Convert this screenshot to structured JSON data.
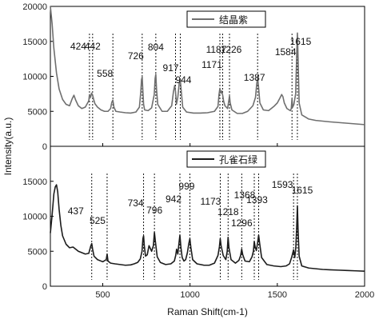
{
  "chart_data": {
    "type": "line",
    "xlabel": "Raman Shift(cm-1)",
    "ylabel": "Intensity(a.u.)",
    "xlim": [
      200,
      2000
    ],
    "x_ticks": [
      500,
      1000,
      1500,
      2000
    ],
    "grid": false,
    "panels": [
      {
        "legend": "结晶紫",
        "legend_position": "top-center",
        "line_color": "#6f6f6f",
        "ylim": [
          0,
          20000
        ],
        "y_ticks": [
          0,
          5000,
          10000,
          15000,
          20000
        ],
        "series": [
          {
            "x": [
              200,
              210,
              220,
              235,
              250,
              270,
              290,
              310,
              325,
              335,
              345,
              360,
              380,
              400,
              420,
              424,
              430,
              436,
              442,
              448,
              455,
              470,
              490,
              510,
              530,
              545,
              552,
              558,
              564,
              575,
              600,
              630,
              660,
              690,
              710,
              718,
              722,
              726,
              730,
              734,
              740,
              760,
              780,
              795,
              800,
              804,
              808,
              815,
              840,
              870,
              895,
              905,
              912,
              917,
              922,
              930,
              938,
              944,
              950,
              958,
              980,
              1020,
              1060,
              1100,
              1140,
              1160,
              1166,
              1171,
              1176,
              1182,
              1187,
              1192,
              1200,
              1215,
              1222,
              1226,
              1230,
              1240,
              1270,
              1300,
              1330,
              1360,
              1375,
              1382,
              1387,
              1392,
              1400,
              1420,
              1450,
              1480,
              1500,
              1515,
              1525,
              1532,
              1540,
              1555,
              1575,
              1580,
              1584,
              1588,
              1595,
              1605,
              1611,
              1615,
              1619,
              1625,
              1640,
              1680,
              1720,
              1760,
              1800,
              1850,
              1900,
              1950,
              2000
            ],
            "y": [
              20000,
              17500,
              14000,
              10500,
              8200,
              6700,
              6000,
              5800,
              6800,
              7300,
              6600,
              5800,
              5400,
              5600,
              6500,
              7400,
              7000,
              7600,
              7300,
              6700,
              6100,
              5600,
              5200,
              5000,
              5000,
              5400,
              6300,
              6600,
              5600,
              5000,
              4900,
              4800,
              4750,
              4900,
              5600,
              7800,
              9500,
              9900,
              7800,
              6000,
              5200,
              5100,
              5500,
              7400,
              9700,
              10300,
              8200,
              6000,
              5000,
              5000,
              5800,
              7800,
              8700,
              7800,
              6000,
              7000,
              9000,
              9600,
              7800,
              5600,
              4900,
              4750,
              4750,
              4800,
              5000,
              5700,
              7400,
              8300,
              7600,
              7900,
              7300,
              6500,
              5800,
              5400,
              6500,
              7200,
              6200,
              5200,
              4700,
              4700,
              5000,
              5800,
              7000,
              8900,
              9800,
              8600,
              6200,
              5200,
              5100,
              5700,
              6200,
              6900,
              7400,
              7100,
              6200,
              5400,
              5100,
              5400,
              6800,
              5600,
              6000,
              7500,
              13000,
              16200,
              12500,
              6200,
              4500,
              3900,
              3700,
              3600,
              3500,
              3400,
              3300,
              3200,
              3100
            ]
          }
        ],
        "peak_labels": [
          {
            "label": "424",
            "x": 424
          },
          {
            "label": "442",
            "x": 442
          },
          {
            "label": "558",
            "x": 558
          },
          {
            "label": "726",
            "x": 726
          },
          {
            "label": "804",
            "x": 804
          },
          {
            "label": "917",
            "x": 917
          },
          {
            "label": "944",
            "x": 944
          },
          {
            "label": "1171",
            "x": 1171
          },
          {
            "label": "1187",
            "x": 1187
          },
          {
            "label": "1226",
            "x": 1226
          },
          {
            "label": "1387",
            "x": 1387
          },
          {
            "label": "1584",
            "x": 1584
          },
          {
            "label": "1615",
            "x": 1615
          }
        ]
      },
      {
        "legend": "孔雀石绿",
        "legend_position": "top-center",
        "line_color": "#1c1c1c",
        "ylim": [
          0,
          20000
        ],
        "y_ticks": [
          0,
          5000,
          10000,
          15000
        ],
        "series": [
          {
            "x": [
              200,
              210,
              220,
              228,
              235,
              242,
              250,
              260,
              270,
              290,
              310,
              330,
              345,
              360,
              380,
              400,
              420,
              432,
              437,
              442,
              450,
              470,
              500,
              520,
              525,
              530,
              545,
              570,
              600,
              630,
              660,
              680,
              700,
              715,
              725,
              730,
              734,
              738,
              745,
              755,
              765,
              780,
              790,
              796,
              802,
              812,
              830,
              860,
              890,
              910,
              918,
              923,
              930,
              936,
              942,
              948,
              955,
              965,
              975,
              985,
              993,
              999,
              1005,
              1015,
              1040,
              1080,
              1110,
              1140,
              1160,
              1168,
              1173,
              1178,
              1190,
              1205,
              1213,
              1218,
              1223,
              1235,
              1260,
              1280,
              1290,
              1296,
              1302,
              1315,
              1340,
              1355,
              1363,
              1368,
              1373,
              1380,
              1387,
              1393,
              1399,
              1410,
              1440,
              1480,
              1520,
              1550,
              1570,
              1583,
              1593,
              1600,
              1606,
              1611,
              1615,
              1619,
              1625,
              1640,
              1680,
              1720,
              1760,
              1800,
              1850,
              1900,
              1950,
              2000
            ],
            "y": [
              7600,
              10200,
              13200,
              14200,
              14500,
              13500,
              11000,
              8700,
              7200,
              6000,
              5500,
              5600,
              5300,
              5000,
              4800,
              4600,
              4700,
              5800,
              6100,
              5300,
              4300,
              3800,
              3500,
              3800,
              4600,
              3600,
              3300,
              3200,
              3100,
              3000,
              3050,
              3200,
              3400,
              3900,
              5000,
              6800,
              7200,
              5800,
              4300,
              4500,
              5800,
              5000,
              5800,
              7700,
              6300,
              4200,
              3400,
              3100,
              3200,
              3600,
              4400,
              5300,
              4600,
              6000,
              7300,
              5500,
              4100,
              3600,
              3800,
              4800,
              6100,
              6800,
              5500,
              3800,
              3200,
              3000,
              3000,
              3300,
              4400,
              5600,
              6800,
              5800,
              4400,
              3800,
              5000,
              7000,
              5500,
              3800,
              3300,
              3700,
              4400,
              5300,
              4500,
              3600,
              3500,
              4200,
              5000,
              6400,
              5600,
              5100,
              6200,
              7300,
              6100,
              4100,
              3100,
              2900,
              2800,
              2900,
              3200,
              4200,
              5200,
              4100,
              5600,
              8500,
              11500,
              8000,
              4300,
              2900,
              2600,
              2500,
              2400,
              2350,
              2300,
              2250,
              2200,
              2150
            ]
          }
        ],
        "peak_labels": [
          {
            "label": "437",
            "x": 437
          },
          {
            "label": "525",
            "x": 525
          },
          {
            "label": "734",
            "x": 734
          },
          {
            "label": "796",
            "x": 796
          },
          {
            "label": "942",
            "x": 942
          },
          {
            "label": "999",
            "x": 999
          },
          {
            "label": "1173",
            "x": 1173
          },
          {
            "label": "1218",
            "x": 1218
          },
          {
            "label": "1296",
            "x": 1296
          },
          {
            "label": "1368",
            "x": 1368
          },
          {
            "label": "1393",
            "x": 1393
          },
          {
            "label": "1593",
            "x": 1593
          },
          {
            "label": "1615",
            "x": 1615
          }
        ]
      }
    ]
  }
}
